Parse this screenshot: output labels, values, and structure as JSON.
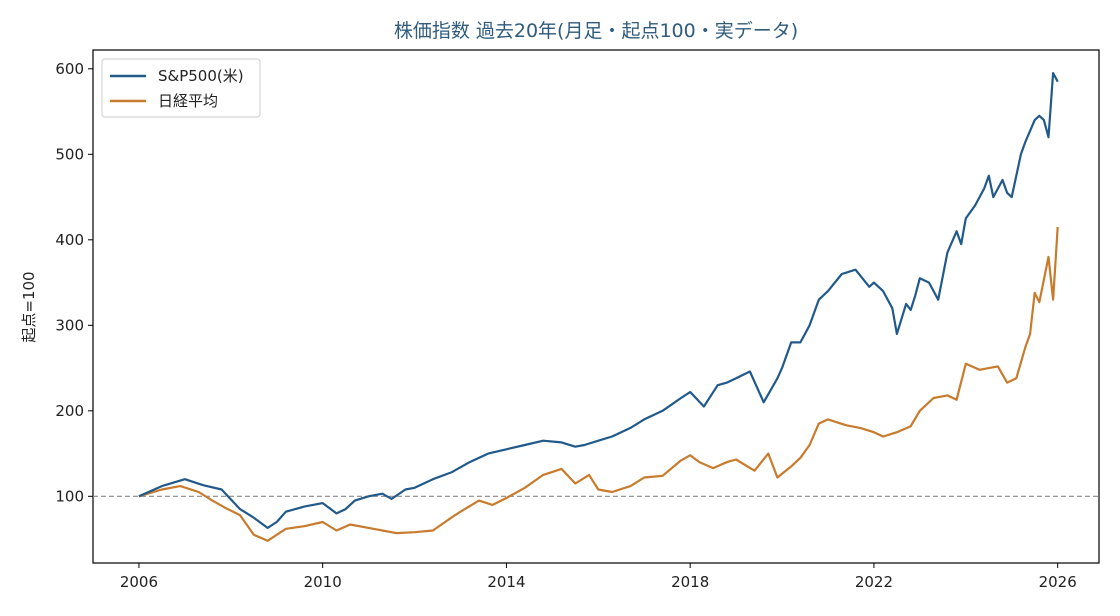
{
  "chart_data": {
    "type": "line",
    "title": "株価指数 過去20年(月足・起点100・実データ)",
    "xlabel": "",
    "ylabel": "起点=100",
    "xlim": [
      2005.0,
      2026.9
    ],
    "ylim": [
      22,
      622
    ],
    "x_ticks": [
      "2006",
      "2010",
      "2014",
      "2018",
      "2022",
      "2026"
    ],
    "y_ticks": [
      "100",
      "200",
      "300",
      "400",
      "500",
      "600"
    ],
    "reference_line": {
      "y": 100,
      "style": "dashed",
      "color": "#888888"
    },
    "legend": {
      "position": "top-left"
    },
    "grid": false,
    "series": [
      {
        "name": "S&P500(米)",
        "color": "#215a8a",
        "x": [
          2006.0,
          2006.5,
          2007.0,
          2007.4,
          2007.8,
          2008.2,
          2008.5,
          2008.8,
          2009.0,
          2009.2,
          2009.6,
          2010.0,
          2010.3,
          2010.5,
          2010.7,
          2011.0,
          2011.3,
          2011.5,
          2011.8,
          2012.0,
          2012.4,
          2012.8,
          2013.2,
          2013.6,
          2014.0,
          2014.4,
          2014.8,
          2015.2,
          2015.5,
          2015.7,
          2016.0,
          2016.3,
          2016.7,
          2017.0,
          2017.4,
          2017.8,
          2018.0,
          2018.3,
          2018.6,
          2018.8,
          2019.0,
          2019.3,
          2019.6,
          2019.9,
          2020.0,
          2020.2,
          2020.4,
          2020.6,
          2020.8,
          2021.0,
          2021.3,
          2021.6,
          2021.9,
          2022.0,
          2022.2,
          2022.4,
          2022.5,
          2022.7,
          2022.8,
          2022.9,
          2023.0,
          2023.2,
          2023.4,
          2023.6,
          2023.8,
          2023.9,
          2024.0,
          2024.2,
          2024.4,
          2024.5,
          2024.6,
          2024.8,
          2024.9,
          2025.0,
          2025.2,
          2025.3,
          2025.5,
          2025.6,
          2025.7,
          2025.8,
          2025.9,
          2026.0
        ],
        "values": [
          100,
          112,
          120,
          113,
          108,
          85,
          75,
          63,
          70,
          82,
          88,
          92,
          80,
          85,
          95,
          100,
          103,
          97,
          108,
          110,
          120,
          128,
          140,
          150,
          155,
          160,
          165,
          163,
          158,
          160,
          165,
          170,
          180,
          190,
          200,
          215,
          222,
          205,
          230,
          233,
          238,
          246,
          210,
          238,
          250,
          280,
          280,
          300,
          330,
          340,
          360,
          365,
          345,
          350,
          340,
          320,
          290,
          325,
          318,
          335,
          355,
          350,
          330,
          385,
          410,
          395,
          425,
          440,
          460,
          475,
          450,
          470,
          455,
          450,
          500,
          515,
          540,
          545,
          540,
          520,
          595,
          585
        ]
      },
      {
        "name": "日経平均",
        "color": "#c87b2c",
        "x": [
          2006.0,
          2006.5,
          2006.9,
          2007.3,
          2007.6,
          2007.9,
          2008.2,
          2008.5,
          2008.8,
          2009.2,
          2009.6,
          2010.0,
          2010.3,
          2010.6,
          2011.0,
          2011.3,
          2011.6,
          2012.0,
          2012.4,
          2012.8,
          2013.0,
          2013.4,
          2013.7,
          2014.0,
          2014.4,
          2014.8,
          2015.2,
          2015.5,
          2015.8,
          2016.0,
          2016.3,
          2016.7,
          2017.0,
          2017.4,
          2017.8,
          2018.0,
          2018.2,
          2018.5,
          2018.8,
          2019.0,
          2019.4,
          2019.7,
          2019.9,
          2020.2,
          2020.4,
          2020.6,
          2020.8,
          2021.0,
          2021.4,
          2021.7,
          2022.0,
          2022.2,
          2022.5,
          2022.8,
          2023.0,
          2023.3,
          2023.6,
          2023.8,
          2024.0,
          2024.3,
          2024.5,
          2024.7,
          2024.9,
          2025.1,
          2025.3,
          2025.4,
          2025.5,
          2025.6,
          2025.8,
          2025.9,
          2026.0
        ],
        "values": [
          100,
          108,
          112,
          105,
          95,
          86,
          78,
          55,
          48,
          62,
          65,
          70,
          60,
          67,
          63,
          60,
          57,
          58,
          60,
          75,
          82,
          95,
          90,
          98,
          110,
          125,
          132,
          115,
          125,
          108,
          105,
          112,
          122,
          124,
          142,
          148,
          140,
          133,
          140,
          143,
          130,
          150,
          122,
          135,
          145,
          160,
          185,
          190,
          183,
          180,
          175,
          170,
          175,
          182,
          200,
          215,
          218,
          213,
          255,
          248,
          250,
          252,
          233,
          238,
          275,
          290,
          338,
          327,
          380,
          330,
          415
        ]
      }
    ]
  }
}
